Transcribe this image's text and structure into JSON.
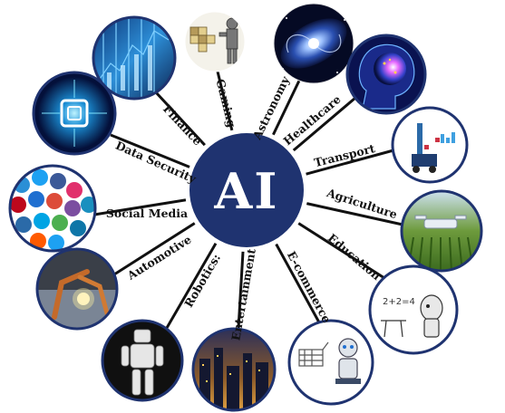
{
  "hub": {
    "title": "AI"
  },
  "domains": [
    {
      "id": "finance",
      "label": "Finance",
      "icon": "circuit-finance-icon"
    },
    {
      "id": "gaming",
      "label": "Gaming",
      "icon": "gaming-robot-icon"
    },
    {
      "id": "astronomy",
      "label": "Astronomy",
      "icon": "galaxy-icon"
    },
    {
      "id": "healthcare",
      "label": "Healthcare",
      "icon": "brain-head-icon"
    },
    {
      "id": "transport",
      "label": "Transport",
      "icon": "vehicle-sensor-icon"
    },
    {
      "id": "agriculture",
      "label": "Agriculture",
      "icon": "farm-drone-icon"
    },
    {
      "id": "education",
      "label": "Education",
      "icon": "classroom-robot-icon"
    },
    {
      "id": "ecommerce",
      "label": "E-commerce",
      "icon": "shopping-robot-icon"
    },
    {
      "id": "entertainment",
      "label": "Entertainment",
      "icon": "city-lights-icon"
    },
    {
      "id": "robotics",
      "label": "Robotics:",
      "icon": "humanoid-robot-icon"
    },
    {
      "id": "automotive",
      "label": "Automotive",
      "icon": "welding-robot-icon"
    },
    {
      "id": "social",
      "label": "Social Media",
      "icon": "social-bubbles-icon"
    },
    {
      "id": "security",
      "label": "Data Security",
      "icon": "chip-lock-icon"
    }
  ],
  "colors": {
    "hub": "#1f3370",
    "ring": "#1f3370",
    "spoke": "#111111"
  }
}
